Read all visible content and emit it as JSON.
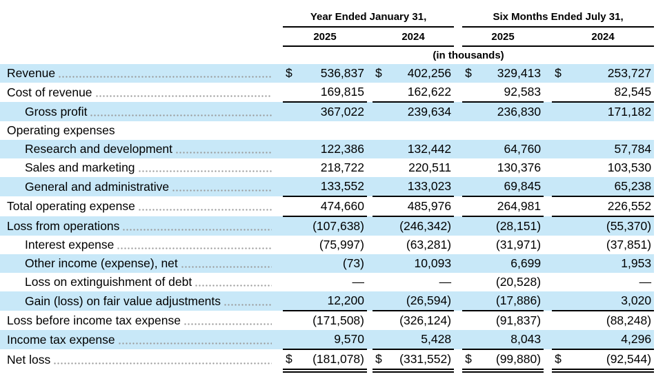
{
  "document": {
    "type": "consolidated statements of operations",
    "units_note": "(in thousands)",
    "dollar_sign": "$",
    "highlight_color": "#c8e8f8"
  },
  "table": {
    "col_groups": [
      {
        "title": "Year Ended January 31,",
        "years": [
          "2025",
          "2024"
        ]
      },
      {
        "title": "Six Months Ended July 31,",
        "years": [
          "2025",
          "2024"
        ]
      }
    ],
    "rows": [
      {
        "label": "Revenue",
        "indent": 0,
        "dollar": true,
        "leader": true,
        "values": [
          "536,837",
          "402,256",
          "329,413",
          "253,727"
        ],
        "border_bottom": "none"
      },
      {
        "label": "Cost of revenue",
        "indent": 0,
        "dollar": false,
        "leader": true,
        "values": [
          "169,815",
          "162,622",
          "92,583",
          "82,545"
        ],
        "border_bottom": "single"
      },
      {
        "label": "Gross profit",
        "indent": 1,
        "dollar": false,
        "leader": true,
        "values": [
          "367,022",
          "239,634",
          "236,830",
          "171,182"
        ],
        "border_bottom": "none"
      },
      {
        "label": "Operating expenses",
        "indent": 0,
        "dollar": false,
        "leader": false,
        "values": null,
        "border_bottom": "none"
      },
      {
        "label": "Research and development",
        "indent": 1,
        "dollar": false,
        "leader": true,
        "values": [
          "122,386",
          "132,442",
          "64,760",
          "57,784"
        ],
        "border_bottom": "none"
      },
      {
        "label": "Sales and marketing",
        "indent": 1,
        "dollar": false,
        "leader": true,
        "values": [
          "218,722",
          "220,511",
          "130,376",
          "103,530"
        ],
        "border_bottom": "none"
      },
      {
        "label": "General and administrative",
        "indent": 1,
        "dollar": false,
        "leader": true,
        "values": [
          "133,552",
          "133,023",
          "69,845",
          "65,238"
        ],
        "border_bottom": "single"
      },
      {
        "label": "Total operating expense",
        "indent": 0,
        "dollar": false,
        "leader": true,
        "values": [
          "474,660",
          "485,976",
          "264,981",
          "226,552"
        ],
        "border_bottom": "single"
      },
      {
        "label": "Loss from operations",
        "indent": 0,
        "dollar": false,
        "leader": true,
        "values": [
          "(107,638)",
          "(246,342)",
          "(28,151)",
          "(55,370)"
        ],
        "border_bottom": "none"
      },
      {
        "label": "Interest expense",
        "indent": 1,
        "dollar": false,
        "leader": true,
        "values": [
          "(75,997)",
          "(63,281)",
          "(31,971)",
          "(37,851)"
        ],
        "border_bottom": "none"
      },
      {
        "label": "Other income (expense), net",
        "indent": 1,
        "dollar": false,
        "leader": true,
        "values": [
          "(73)",
          "10,093",
          "6,699",
          "1,953"
        ],
        "border_bottom": "none"
      },
      {
        "label": "Loss on extinguishment of debt",
        "indent": 1,
        "dollar": false,
        "leader": true,
        "values": [
          "—",
          "—",
          "(20,528)",
          "—"
        ],
        "border_bottom": "none"
      },
      {
        "label": "Gain (loss) on fair value adjustments",
        "indent": 1,
        "dollar": false,
        "leader": true,
        "values": [
          "12,200",
          "(26,594)",
          "(17,886)",
          "3,020"
        ],
        "border_bottom": "single"
      },
      {
        "label": "Loss before income tax expense",
        "indent": 0,
        "dollar": false,
        "leader": true,
        "values": [
          "(171,508)",
          "(326,124)",
          "(91,837)",
          "(88,248)"
        ],
        "border_bottom": "none"
      },
      {
        "label": "Income tax expense",
        "indent": 0,
        "dollar": false,
        "leader": true,
        "values": [
          "9,570",
          "5,428",
          "8,043",
          "4,296"
        ],
        "border_bottom": "single"
      },
      {
        "label": "Net loss",
        "indent": 0,
        "dollar": true,
        "leader": true,
        "values": [
          "(181,078)",
          "(331,552)",
          "(99,880)",
          "(92,544)"
        ],
        "border_bottom": "double"
      }
    ]
  }
}
